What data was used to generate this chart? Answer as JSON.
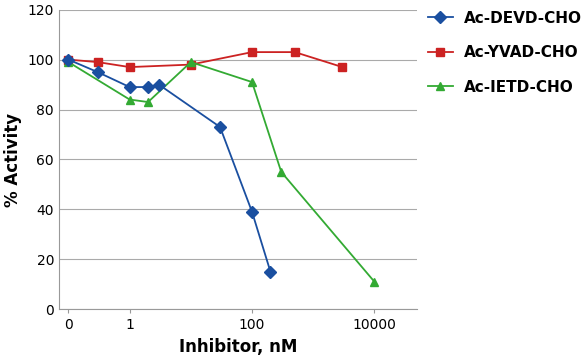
{
  "series": [
    {
      "label": "Ac-DEVD-CHO",
      "x": [
        0.1,
        0.3,
        1.0,
        2.0,
        3.0,
        30.0,
        100.0,
        200.0
      ],
      "y": [
        100,
        95,
        89,
        89,
        90,
        73,
        39,
        15
      ],
      "color": "#1a4fa0",
      "marker": "D",
      "markersize": 6,
      "zorder": 3
    },
    {
      "label": "Ac-YVAD-CHO",
      "x": [
        0.1,
        0.3,
        1.0,
        10.0,
        100.0,
        500.0,
        3000.0
      ],
      "y": [
        100,
        99,
        97,
        98,
        103,
        103,
        97
      ],
      "color": "#cc2222",
      "marker": "s",
      "markersize": 6,
      "zorder": 2
    },
    {
      "label": "Ac-IETD-CHO",
      "x": [
        0.1,
        1.0,
        2.0,
        10.0,
        100.0,
        300.0,
        10000.0
      ],
      "y": [
        99,
        84,
        83,
        99,
        91,
        55,
        11
      ],
      "color": "#33aa33",
      "marker": "^",
      "markersize": 6,
      "zorder": 2
    }
  ],
  "xlabel": "Inhibitor, nM",
  "ylabel": "% Activity",
  "ylim": [
    0,
    120
  ],
  "yticks": [
    0,
    20,
    40,
    60,
    80,
    100,
    120
  ],
  "xtick_positions": [
    0.1,
    1,
    100,
    10000
  ],
  "xtick_labels": [
    "0",
    "1",
    "100",
    "10000"
  ],
  "xmin": 0.07,
  "xmax": 50000,
  "background_color": "#ffffff",
  "grid_color": "#aaaaaa",
  "legend_fontsize": 10,
  "axis_label_fontsize": 12
}
